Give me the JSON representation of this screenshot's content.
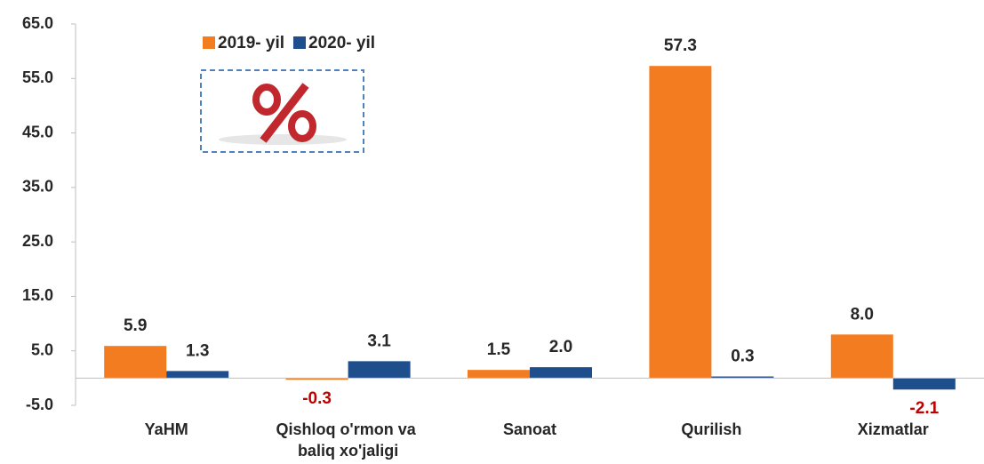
{
  "chart_data": {
    "type": "bar",
    "categories": [
      "YaHM",
      "Qishloq o'rmon va baliq xo'jaligi",
      "Sanoat",
      "Qurilish",
      "Xizmatlar"
    ],
    "series": [
      {
        "name": "2019- yil",
        "color": "#f47c20",
        "values": [
          5.9,
          -0.3,
          1.5,
          57.3,
          8.0
        ],
        "value_labels": [
          "5.9",
          "-0.3",
          "1.5",
          "57.3",
          "8.0"
        ]
      },
      {
        "name": "2020- yil",
        "color": "#1f4e8c",
        "values": [
          1.3,
          3.1,
          2.0,
          0.3,
          -2.1
        ],
        "value_labels": [
          "1.3",
          "3.1",
          "2.0",
          "0.3",
          "-2.1"
        ]
      }
    ],
    "negative_label_color": "#c00000",
    "ylim": [
      -5,
      65
    ],
    "yticks": [
      {
        "value": -5,
        "label": "-5.0"
      },
      {
        "value": 5,
        "label": "5.0"
      },
      {
        "value": 15,
        "label": "15.0"
      },
      {
        "value": 25,
        "label": "25.0"
      },
      {
        "value": 35,
        "label": "35.0"
      },
      {
        "value": 45,
        "label": "45.0"
      },
      {
        "value": 55,
        "label": "55.0"
      },
      {
        "value": 65,
        "label": "65.0"
      }
    ],
    "grid": false
  }
}
